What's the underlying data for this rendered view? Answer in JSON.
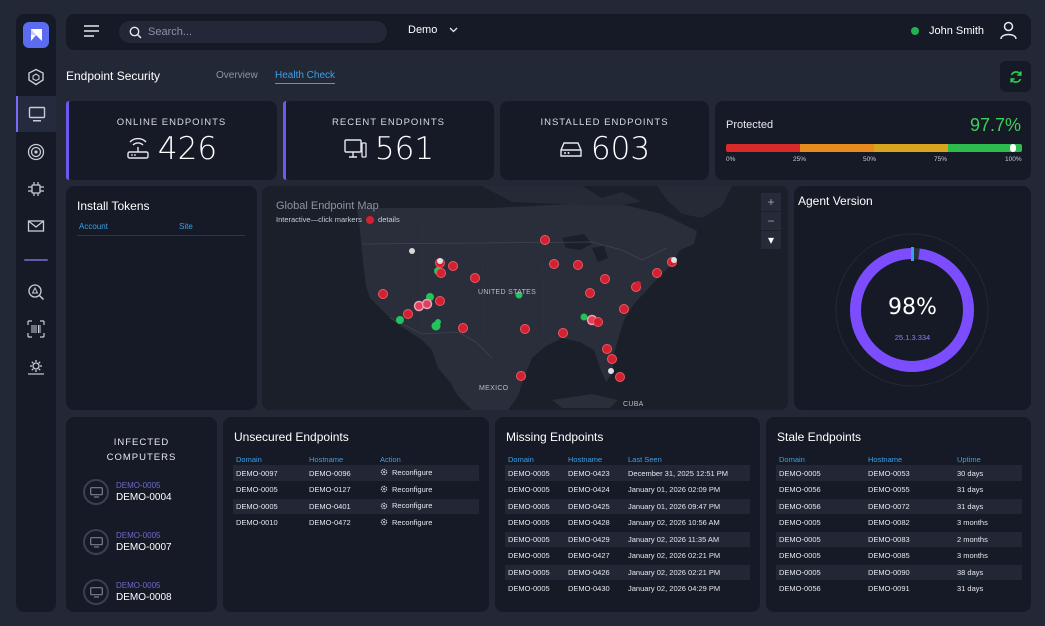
{
  "header": {
    "search_placeholder": "Search...",
    "tenant": "Demo",
    "user_name": "John Smith",
    "status_color": "#22b14c"
  },
  "page": {
    "title": "Endpoint Security",
    "tabs": [
      {
        "label": "Overview",
        "active": false
      },
      {
        "label": "Health Check",
        "active": true
      }
    ]
  },
  "sidebar": {
    "items": [
      "shield-icon",
      "monitor-icon",
      "target-icon",
      "bug-icon",
      "mail-icon",
      "alert-search-icon",
      "barcode-icon",
      "settings-cog-icon"
    ],
    "active": "monitor-icon"
  },
  "stats": {
    "online": {
      "label": "ONLINE ENDPOINTS",
      "value": "426",
      "icon": "wifi-router-icon"
    },
    "recent": {
      "label": "RECENT ENDPOINTS",
      "value": "561",
      "icon": "desktop-icon"
    },
    "installed": {
      "label": "INSTALLED ENDPOINTS",
      "value": "603",
      "icon": "hard-drive-icon"
    }
  },
  "protected": {
    "label": "Protected",
    "value": "97.7%",
    "fraction": 0.977,
    "ticks": [
      "0%",
      "25%",
      "50%",
      "75%",
      "100%"
    ],
    "colors": [
      "#d92a2a",
      "#e88b1e",
      "#d8a61e",
      "#2dbb4e"
    ]
  },
  "tokens": {
    "title": "Install Tokens",
    "columns": [
      "Account",
      "Site"
    ]
  },
  "map": {
    "title": "Global Endpoint Map",
    "subtitle_pre": "Interactive—click markers",
    "subtitle_post": "details",
    "zoom_in": "+",
    "zoom_out": "−",
    "menu": "▾",
    "labels": [
      "UNITED STATES",
      "MEXICO",
      "CUBA"
    ]
  },
  "agent": {
    "title": "Agent Version",
    "percent": "98%",
    "fraction": 0.98,
    "version": "25.1.3.334",
    "color": "#7c4dff"
  },
  "infected": {
    "title_line1": "INFECTED",
    "title_line2": "COMPUTERS",
    "items": [
      {
        "domain": "DEMO-0005",
        "host": "DEMO-0004"
      },
      {
        "domain": "DEMO-0005",
        "host": "DEMO-0007"
      },
      {
        "domain": "DEMO-0005",
        "host": "DEMO-0008"
      }
    ]
  },
  "unsecured": {
    "title": "Unsecured Endpoints",
    "columns": [
      "Domain",
      "Hostname",
      "Action"
    ],
    "rows": [
      [
        "DEMO-0097",
        "DEMO-0096",
        "Reconfigure"
      ],
      [
        "DEMO-0005",
        "DEMO-0127",
        "Reconfigure"
      ],
      [
        "DEMO-0005",
        "DEMO-0401",
        "Reconfigure"
      ],
      [
        "DEMO-0010",
        "DEMO-0472",
        "Reconfigure"
      ]
    ]
  },
  "missing": {
    "title": "Missing Endpoints",
    "columns": [
      "Domain",
      "Hostname",
      "Last Seen"
    ],
    "rows": [
      [
        "DEMO-0005",
        "DEMO-0423",
        "December 31, 2025 12:51 PM"
      ],
      [
        "DEMO-0005",
        "DEMO-0424",
        "January 01, 2026 02:09 PM"
      ],
      [
        "DEMO-0005",
        "DEMO-0425",
        "January 01, 2026 09:47 PM"
      ],
      [
        "DEMO-0005",
        "DEMO-0428",
        "January 02, 2026 10:56 AM"
      ],
      [
        "DEMO-0005",
        "DEMO-0429",
        "January 02, 2026 11:35 AM"
      ],
      [
        "DEMO-0005",
        "DEMO-0427",
        "January 02, 2026 02:21 PM"
      ],
      [
        "DEMO-0005",
        "DEMO-0426",
        "January 02, 2026 02:21 PM"
      ],
      [
        "DEMO-0005",
        "DEMO-0430",
        "January 02, 2026 04:29 PM"
      ]
    ]
  },
  "stale": {
    "title": "Stale Endpoints",
    "columns": [
      "Domain",
      "Hostname",
      "Uptime"
    ],
    "rows": [
      [
        "DEMO-0005",
        "DEMO-0053",
        "30 days"
      ],
      [
        "DEMO-0056",
        "DEMO-0055",
        "31 days"
      ],
      [
        "DEMO-0056",
        "DEMO-0072",
        "31 days"
      ],
      [
        "DEMO-0005",
        "DEMO-0082",
        "3 months"
      ],
      [
        "DEMO-0005",
        "DEMO-0083",
        "2 months"
      ],
      [
        "DEMO-0005",
        "DEMO-0085",
        "3 months"
      ],
      [
        "DEMO-0005",
        "DEMO-0090",
        "38 days"
      ],
      [
        "DEMO-0056",
        "DEMO-0091",
        "31 days"
      ]
    ]
  }
}
